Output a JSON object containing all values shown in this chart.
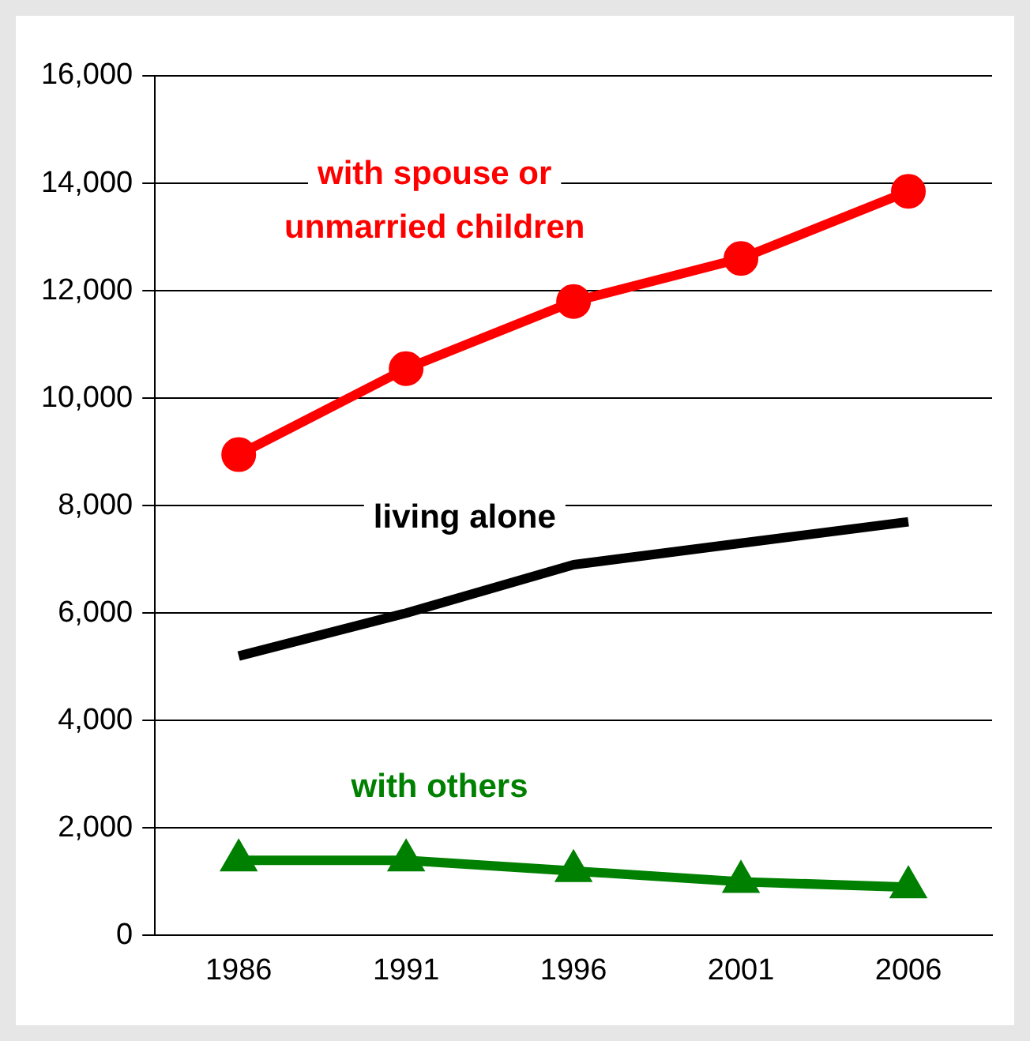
{
  "chart_data": {
    "type": "line",
    "categories": [
      "1986",
      "1991",
      "1996",
      "2001",
      "2006"
    ],
    "series": [
      {
        "name": "with spouse or unmarried children",
        "color": "#ff0000",
        "marker": "circle",
        "values": [
          8950,
          10550,
          11800,
          12600,
          13850
        ]
      },
      {
        "name": "living alone",
        "color": "#000000",
        "marker": "none",
        "values": [
          5200,
          6000,
          6900,
          7300,
          7700
        ]
      },
      {
        "name": "with others",
        "color": "#008000",
        "marker": "triangle",
        "values": [
          1400,
          1400,
          1200,
          1000,
          900
        ]
      }
    ],
    "ylim": [
      0,
      16000
    ],
    "yticks": [
      {
        "value": 0,
        "label": "0"
      },
      {
        "value": 2000,
        "label": "2,000"
      },
      {
        "value": 4000,
        "label": "4,000"
      },
      {
        "value": 6000,
        "label": "6,000"
      },
      {
        "value": 8000,
        "label": "8,000"
      },
      {
        "value": 10000,
        "label": "10,000"
      },
      {
        "value": 12000,
        "label": "12,000"
      },
      {
        "value": 14000,
        "label": "14,000"
      },
      {
        "value": 16000,
        "label": "16,000"
      }
    ],
    "grid": "y",
    "legend": false,
    "line_style": "solid"
  }
}
